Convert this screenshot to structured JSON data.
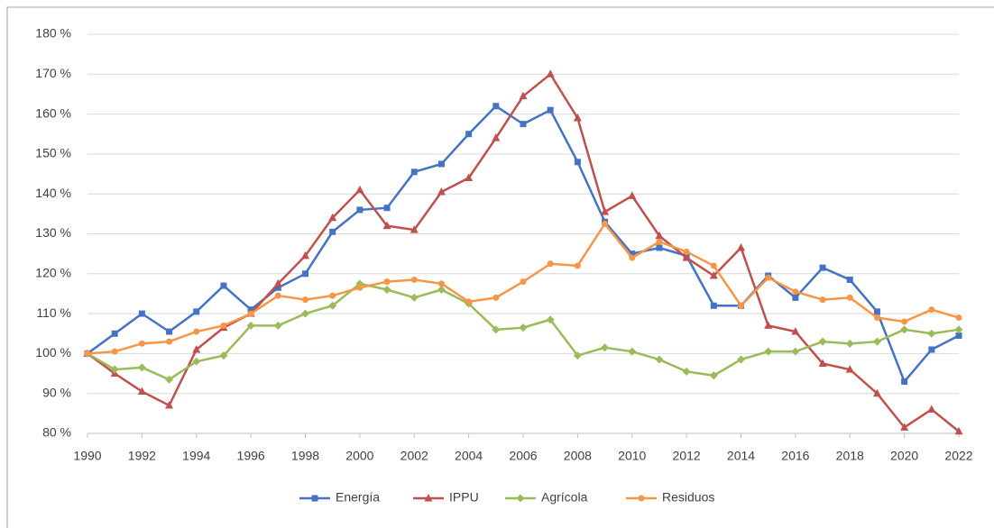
{
  "chart_data": {
    "type": "line",
    "x": [
      1990,
      1991,
      1992,
      1993,
      1994,
      1995,
      1996,
      1997,
      1998,
      1999,
      2000,
      2001,
      2002,
      2003,
      2004,
      2005,
      2006,
      2007,
      2008,
      2009,
      2010,
      2011,
      2012,
      2013,
      2014,
      2015,
      2016,
      2017,
      2018,
      2019,
      2020,
      2021,
      2022
    ],
    "series": [
      {
        "name": "Energía",
        "color": "#4472c4",
        "marker": "square",
        "values": [
          100,
          105,
          110,
          105.5,
          110.5,
          117,
          111,
          116.5,
          120,
          130.5,
          136,
          136.5,
          145.5,
          147.5,
          155,
          162,
          157.5,
          161,
          148,
          133,
          125,
          126.5,
          124.5,
          112,
          112,
          119.5,
          114,
          121.5,
          118.5,
          110.5,
          93,
          101,
          104.5
        ]
      },
      {
        "name": "IPPU",
        "color": "#c0504d",
        "marker": "triangle",
        "values": [
          100,
          95,
          90.5,
          87,
          101,
          106.5,
          110,
          117.5,
          124.5,
          134,
          141,
          132,
          131,
          140.5,
          144,
          154,
          164.5,
          170,
          159,
          135.5,
          139.5,
          129.5,
          124,
          119.5,
          126.5,
          107,
          105.5,
          97.5,
          96,
          90,
          81.5,
          86,
          80.5
        ]
      },
      {
        "name": "Agrícola",
        "color": "#9bbb59",
        "marker": "diamond",
        "values": [
          100,
          96,
          96.5,
          93.5,
          98,
          99.5,
          107,
          107,
          110,
          112,
          117.5,
          116,
          114,
          116,
          112.5,
          106,
          106.5,
          108.5,
          99.5,
          101.5,
          100.5,
          98.5,
          95.5,
          94.5,
          98.5,
          100.5,
          100.5,
          103,
          102.5,
          103,
          106,
          105,
          106
        ]
      },
      {
        "name": "Residuos",
        "color": "#f79646",
        "marker": "circle",
        "values": [
          100,
          100.5,
          102.5,
          103,
          105.5,
          107,
          110,
          114.5,
          113.5,
          114.5,
          116.5,
          118,
          118.5,
          117.5,
          113,
          114,
          118,
          122.5,
          122,
          132.5,
          124,
          128,
          125.5,
          122,
          112,
          119,
          115.5,
          113.5,
          114,
          109,
          108,
          111,
          109
        ]
      }
    ],
    "xlim": [
      1990,
      2022
    ],
    "xticks": [
      1990,
      1992,
      1994,
      1996,
      1998,
      2000,
      2002,
      2004,
      2006,
      2008,
      2010,
      2012,
      2014,
      2016,
      2018,
      2020,
      2022
    ],
    "ylim": [
      80,
      180
    ],
    "yticks": [
      {
        "value": 80,
        "label": "80 %"
      },
      {
        "value": 90,
        "label": "90 %"
      },
      {
        "value": 100,
        "label": "100 %"
      },
      {
        "value": 110,
        "label": "110 %"
      },
      {
        "value": 120,
        "label": "120 %"
      },
      {
        "value": 130,
        "label": "130 %"
      },
      {
        "value": 140,
        "label": "140 %"
      },
      {
        "value": 150,
        "label": "150 %"
      },
      {
        "value": 160,
        "label": "160 %"
      },
      {
        "value": 170,
        "label": "170 %"
      },
      {
        "value": 180,
        "label": "180 %"
      }
    ],
    "grid": true,
    "legend": "bottom"
  }
}
